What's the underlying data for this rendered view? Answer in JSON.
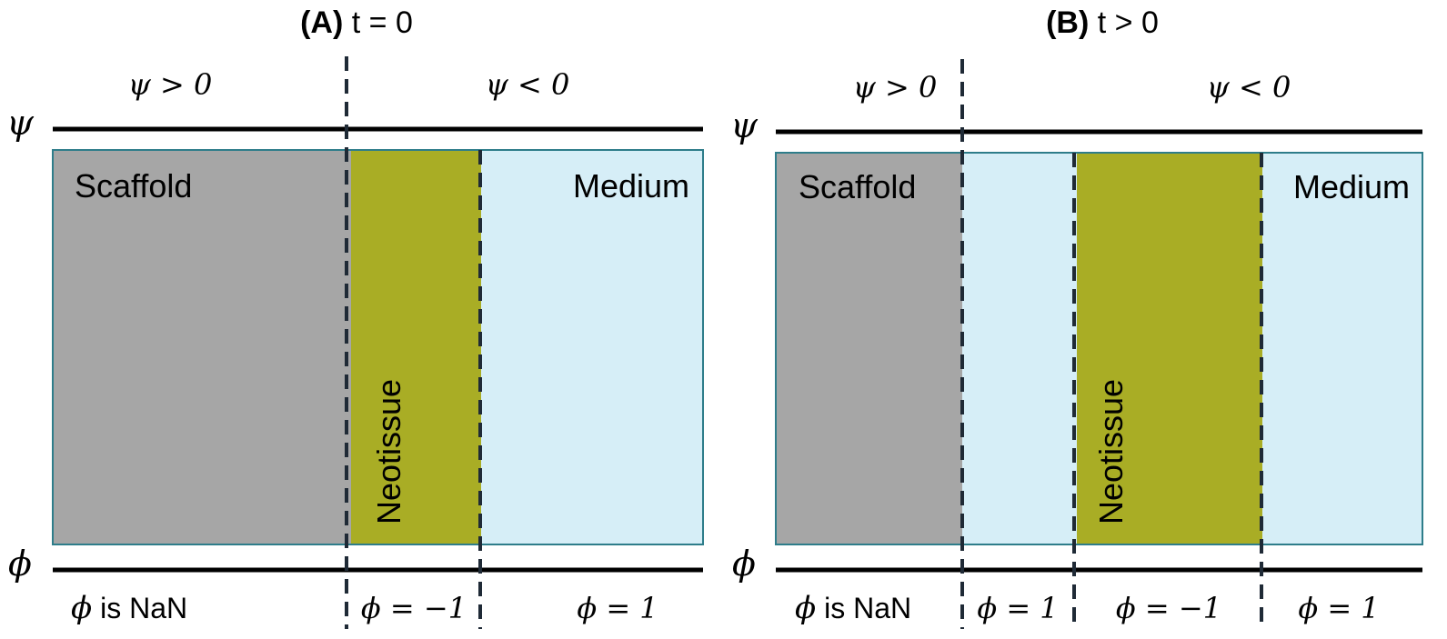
{
  "panel_a": {
    "title_bold": "(A)",
    "title_rest": " t = 0",
    "psi_left": "ψ > 0",
    "psi_right": "ψ < 0",
    "psi_axis": "ψ",
    "phi_axis": "ϕ",
    "scaffold": "Scaffold",
    "neotissue": "Neotissue",
    "medium": "Medium",
    "phi_scaffold_sym": "ϕ",
    "phi_scaffold_text": " is NaN",
    "phi_neotissue": "ϕ = −1",
    "phi_medium": "ϕ = 1"
  },
  "panel_b": {
    "title_bold": "(B)",
    "title_rest": " t > 0",
    "psi_left": "ψ > 0",
    "psi_right": "ψ < 0",
    "psi_axis": "ψ",
    "phi_axis": "ϕ",
    "scaffold": "Scaffold",
    "neotissue": "Neotissue",
    "medium": "Medium",
    "phi_scaffold_sym": "ϕ",
    "phi_scaffold_text": " is NaN",
    "phi_gap": "ϕ = 1",
    "phi_neotissue": "ϕ = −1",
    "phi_medium": "ϕ = 1"
  },
  "colors": {
    "scaffold": "#a6a6a6",
    "neotissue": "#a9ad25",
    "medium": "#d6eef7",
    "border": "#2e7d8a",
    "dashed": "#1f2a36",
    "line": "#000000"
  }
}
